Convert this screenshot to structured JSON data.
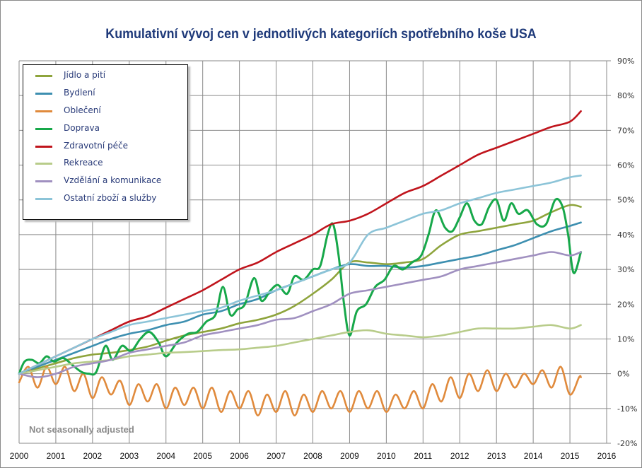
{
  "chart_data": {
    "type": "line",
    "title": "Kumulativní vývoj cen v jednotlivých kategoriích spotřebního koše USA",
    "xlabel": "",
    "ylabel": "",
    "xlim": [
      2000,
      2016
    ],
    "ylim": [
      -20,
      90
    ],
    "x_ticks": [
      "2000",
      "2001",
      "2002",
      "2003",
      "2004",
      "2005",
      "2006",
      "2007",
      "2008",
      "2009",
      "2010",
      "2011",
      "2012",
      "2013",
      "2014",
      "2015",
      "2016"
    ],
    "y_ticks": [
      {
        "value": 90,
        "label": "90%"
      },
      {
        "value": 80,
        "label": "80%"
      },
      {
        "value": 70,
        "label": "70%"
      },
      {
        "value": 60,
        "label": "60%"
      },
      {
        "value": 50,
        "label": "50%"
      },
      {
        "value": 40,
        "label": "40%"
      },
      {
        "value": 30,
        "label": "30%"
      },
      {
        "value": 20,
        "label": "20%"
      },
      {
        "value": 10,
        "label": "10%"
      },
      {
        "value": 0,
        "label": "0%"
      },
      {
        "value": -10,
        "label": "-10%"
      },
      {
        "value": -20,
        "label": "-20%"
      }
    ],
    "y_axis_side": "right",
    "grid": true,
    "legend_position": "top-left",
    "annotation": "Not seasonally adjusted",
    "series": [
      {
        "name": "Jídlo a pití",
        "color": "#8ea43c",
        "x": [
          2000,
          2000.5,
          2001,
          2001.5,
          2002,
          2002.5,
          2003,
          2003.5,
          2004,
          2004.5,
          2005,
          2005.5,
          2006,
          2006.5,
          2007,
          2007.5,
          2008,
          2008.5,
          2009,
          2009.5,
          2010,
          2010.5,
          2011,
          2011.5,
          2012,
          2012.5,
          2013,
          2013.5,
          2014,
          2014.5,
          2015,
          2015.3
        ],
        "y": [
          0,
          1.5,
          3,
          4.5,
          5.5,
          6,
          6.8,
          7.8,
          9.5,
          11,
          12,
          13,
          14.5,
          15.5,
          17,
          19.5,
          23,
          27,
          32,
          32,
          31.5,
          32,
          33,
          37,
          40,
          41,
          42,
          43,
          44,
          46.5,
          48.5,
          48
        ]
      },
      {
        "name": "Bydlení",
        "color": "#3d8fb0",
        "x": [
          2000,
          2000.5,
          2001,
          2001.5,
          2002,
          2002.5,
          2003,
          2003.5,
          2004,
          2004.5,
          2005,
          2005.5,
          2006,
          2006.5,
          2007,
          2007.5,
          2008,
          2008.5,
          2009,
          2009.5,
          2010,
          2010.5,
          2011,
          2011.5,
          2012,
          2012.5,
          2013,
          2013.5,
          2014,
          2014.5,
          2015,
          2015.3
        ],
        "y": [
          0,
          2,
          4,
          6,
          8,
          10,
          11.5,
          12.5,
          14,
          15,
          17,
          18,
          20,
          21.5,
          24,
          26,
          28,
          30,
          31.5,
          31,
          31,
          30.5,
          31,
          32,
          33,
          34,
          35.5,
          37,
          39,
          41,
          42.5,
          43.5
        ]
      },
      {
        "name": "Oblečení",
        "color": "#e08a3c",
        "x": [
          2000,
          2000.25,
          2000.5,
          2000.75,
          2001,
          2001.25,
          2001.5,
          2001.75,
          2002,
          2002.25,
          2002.5,
          2002.75,
          2003,
          2003.25,
          2003.5,
          2003.75,
          2004,
          2004.25,
          2004.5,
          2004.75,
          2005,
          2005.25,
          2005.5,
          2005.75,
          2006,
          2006.25,
          2006.5,
          2006.75,
          2007,
          2007.25,
          2007.5,
          2007.75,
          2008,
          2008.25,
          2008.5,
          2008.75,
          2009,
          2009.25,
          2009.5,
          2009.75,
          2010,
          2010.25,
          2010.5,
          2010.75,
          2011,
          2011.25,
          2011.5,
          2011.75,
          2012,
          2012.25,
          2012.5,
          2012.75,
          2013,
          2013.25,
          2013.5,
          2013.75,
          2014,
          2014.25,
          2014.5,
          2014.75,
          2015,
          2015.25,
          2015.3
        ],
        "y": [
          -2.5,
          2,
          -4,
          2,
          -3,
          2,
          -5,
          0,
          -7,
          -1,
          -6,
          -2,
          -9,
          -3,
          -8,
          -3,
          -10,
          -4,
          -9,
          -4,
          -10,
          -4,
          -11,
          -5,
          -10,
          -5,
          -12,
          -6,
          -11,
          -5,
          -12,
          -6,
          -11,
          -5,
          -10,
          -5,
          -11,
          -5,
          -10,
          -5,
          -11,
          -6,
          -10,
          -5,
          -10,
          -3,
          -8,
          -1,
          -7,
          0,
          -5,
          1,
          -5,
          0,
          -4,
          0,
          -3,
          1,
          -4,
          2,
          -6,
          -1,
          -1
        ]
      },
      {
        "name": "Doprava",
        "color": "#17a84a",
        "x": [
          2000,
          2000.15,
          2000.35,
          2000.55,
          2000.75,
          2000.95,
          2001.2,
          2001.45,
          2001.7,
          2001.9,
          2002.1,
          2002.35,
          2002.55,
          2002.8,
          2003.05,
          2003.3,
          2003.55,
          2003.8,
          2004.0,
          2004.3,
          2004.6,
          2004.85,
          2005.1,
          2005.35,
          2005.55,
          2005.75,
          2005.95,
          2006.15,
          2006.4,
          2006.6,
          2006.85,
          2007.05,
          2007.3,
          2007.5,
          2007.75,
          2008.0,
          2008.2,
          2008.4,
          2008.55,
          2008.7,
          2008.85,
          2009.0,
          2009.2,
          2009.45,
          2009.7,
          2009.95,
          2010.2,
          2010.45,
          2010.7,
          2010.95,
          2011.15,
          2011.35,
          2011.6,
          2011.8,
          2012.0,
          2012.2,
          2012.4,
          2012.6,
          2012.8,
          2013.0,
          2013.2,
          2013.4,
          2013.6,
          2013.85,
          2014.1,
          2014.35,
          2014.6,
          2014.8,
          2014.95,
          2015.1,
          2015.3
        ],
        "y": [
          0,
          3.5,
          4,
          3,
          5,
          3.5,
          4.5,
          2.5,
          0.5,
          0,
          0.5,
          8,
          4,
          8,
          6.5,
          10,
          12,
          9,
          5,
          9,
          11.5,
          12,
          15,
          17,
          25,
          17,
          18.5,
          20,
          27.5,
          21,
          24,
          25.5,
          23,
          28,
          27,
          30,
          31,
          40,
          43,
          34,
          20,
          11,
          18,
          20,
          25,
          27,
          31,
          30,
          32,
          34,
          40,
          47,
          42,
          41,
          45,
          49,
          44,
          43,
          48,
          50,
          44,
          49,
          46,
          47,
          43,
          43,
          50,
          48,
          40,
          29,
          35
        ]
      },
      {
        "name": "Zdravotní péče",
        "color": "#c0141c",
        "x": [
          2000,
          2000.5,
          2001,
          2001.5,
          2002,
          2002.5,
          2003,
          2003.5,
          2004,
          2004.5,
          2005,
          2005.5,
          2006,
          2006.5,
          2007,
          2007.5,
          2008,
          2008.5,
          2009,
          2009.5,
          2010,
          2010.5,
          2011,
          2011.5,
          2012,
          2012.5,
          2013,
          2013.5,
          2014,
          2014.5,
          2015,
          2015.3
        ],
        "y": [
          0,
          2.5,
          5,
          7.5,
          10,
          12.5,
          15,
          16.5,
          19,
          21.5,
          24,
          27,
          30,
          32,
          35,
          37.5,
          40,
          43,
          44,
          46,
          49,
          52,
          54,
          57,
          60,
          63,
          65,
          67,
          69,
          71,
          72.5,
          75.5
        ]
      },
      {
        "name": "Rekreace",
        "color": "#b8cc8a",
        "x": [
          2000,
          2000.5,
          2001,
          2001.5,
          2002,
          2002.5,
          2003,
          2003.5,
          2004,
          2004.5,
          2005,
          2005.5,
          2006,
          2006.5,
          2007,
          2007.5,
          2008,
          2008.5,
          2009,
          2009.5,
          2010,
          2010.5,
          2011,
          2011.5,
          2012,
          2012.5,
          2013,
          2013.5,
          2014,
          2014.5,
          2015,
          2015.3
        ],
        "y": [
          0,
          1,
          2,
          3,
          3.5,
          4,
          5,
          5.5,
          6,
          6.2,
          6.5,
          6.8,
          7,
          7.5,
          8,
          9,
          10,
          11,
          12,
          12.5,
          11.5,
          11,
          10.5,
          11,
          12,
          13,
          13,
          13,
          13.5,
          14,
          13,
          14
        ]
      },
      {
        "name": "Vzdělání a komunikace",
        "color": "#a090c0",
        "x": [
          2000,
          2000.5,
          2001,
          2001.5,
          2002,
          2002.5,
          2003,
          2003.5,
          2004,
          2004.5,
          2005,
          2005.5,
          2006,
          2006.5,
          2007,
          2007.5,
          2008,
          2008.5,
          2009,
          2009.5,
          2010,
          2010.5,
          2011,
          2011.5,
          2012,
          2012.5,
          2013,
          2013.5,
          2014,
          2014.5,
          2015,
          2015.3
        ],
        "y": [
          0,
          -1,
          0,
          2,
          3,
          4,
          6,
          7,
          8,
          9,
          11,
          12,
          13,
          14,
          15.5,
          16,
          18,
          20,
          23,
          24,
          25,
          26,
          27,
          28,
          30,
          31,
          32,
          33,
          34,
          35,
          34,
          35
        ]
      },
      {
        "name": "Ostatní zboží a služby",
        "color": "#8cc4d8",
        "x": [
          2000,
          2000.5,
          2001,
          2001.5,
          2002,
          2002.5,
          2003,
          2003.5,
          2004,
          2004.5,
          2005,
          2005.5,
          2006,
          2006.5,
          2007,
          2007.5,
          2008,
          2008.5,
          2009,
          2009.5,
          2010,
          2010.5,
          2011,
          2011.5,
          2012,
          2012.5,
          2013,
          2013.5,
          2014,
          2014.5,
          2015,
          2015.3
        ],
        "y": [
          0,
          2.5,
          5,
          7.5,
          10,
          12,
          14,
          15,
          16,
          17,
          18,
          19,
          21,
          22.5,
          24,
          26,
          28,
          30,
          32,
          40,
          42,
          44,
          46,
          47,
          49,
          50.5,
          52,
          53,
          54,
          55,
          56.5,
          57
        ]
      }
    ]
  }
}
